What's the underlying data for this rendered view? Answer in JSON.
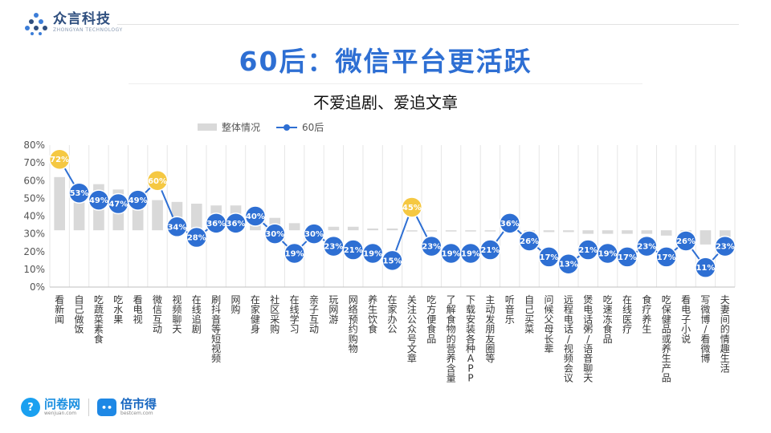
{
  "brand": {
    "name": "众言科技",
    "sub": "ZHONGYAN TECHNOLOGY"
  },
  "title": "60后：微信平台更活跃",
  "subtitle": "不爱追剧、爱追文章",
  "footer": {
    "brand1": "问卷网",
    "brand1_url": "wenjuan.com",
    "brand2": "倍市得",
    "brand2_url": "bestcem.com"
  },
  "colors": {
    "accent": "#2e6fd3",
    "highlight": "#f5c842",
    "bar": "#d9d9d9"
  },
  "chart_data": {
    "type": "bar",
    "categories": [
      "看新闻",
      "自己做饭",
      "吃蔬菜素食",
      "吃水果",
      "看电视",
      "微信互动",
      "视频聊天",
      "在线追剧",
      "刷抖音等短视频",
      "网购",
      "在家健身",
      "社区采购",
      "在线学习",
      "亲子互动",
      "玩网游",
      "网络预约购物",
      "养生饮食",
      "在家办公",
      "关注公众号文章",
      "吃方便食品",
      "了解食物的营养含量",
      "下载安装各种APP",
      "主动发朋友圈等",
      "听音乐",
      "自己买菜",
      "问候父母长辈",
      "远程电话/视频会议",
      "煲电话粥/语音聊天",
      "吃速冻食品",
      "在线医疗",
      "食疗养生",
      "吃保健品或养生产品",
      "看电子小说",
      "写微博/看微博",
      "夫妻间的情趣生活"
    ],
    "series": [
      {
        "name": "整体情况",
        "type": "bar",
        "values": [
          62,
          56,
          58,
          55,
          52,
          49,
          48,
          47,
          46,
          46,
          40,
          39,
          36,
          35,
          34,
          34,
          33,
          33,
          32,
          32,
          32,
          32,
          32,
          33,
          31,
          31,
          31,
          30,
          30,
          30,
          30,
          29,
          29,
          24,
          24
        ]
      },
      {
        "name": "60后",
        "type": "line",
        "values": [
          72,
          53,
          49,
          47,
          49,
          60,
          34,
          28,
          36,
          36,
          40,
          30,
          19,
          30,
          23,
          21,
          19,
          15,
          45,
          23,
          19,
          19,
          21,
          36,
          26,
          17,
          13,
          21,
          19,
          17,
          23,
          17,
          26,
          11,
          23
        ]
      }
    ],
    "highlight_indices": [
      0,
      5,
      18
    ],
    "point_labels": [
      "72%",
      "53%",
      "49%",
      "47%",
      "49%",
      "60%",
      "34%",
      "28%",
      "36%",
      "36%",
      "40%",
      "30%",
      "19%",
      "30%",
      "23%",
      "21%",
      "19%",
      "15%",
      "45%",
      "23%",
      "19%",
      "19%",
      "21%",
      "36%",
      "26%",
      "17%",
      "13%",
      "21%",
      "19%",
      "17%",
      "23%",
      "17%",
      "26%",
      "11%",
      "23%"
    ],
    "ylim": [
      0,
      80
    ],
    "y_ticks": [
      "0%",
      "10%",
      "20%",
      "30%",
      "40%",
      "50%",
      "60%",
      "70%",
      "80%"
    ],
    "bar_base": 32,
    "legend": [
      "整体情况",
      "60后"
    ],
    "legend_position": "top-left"
  }
}
